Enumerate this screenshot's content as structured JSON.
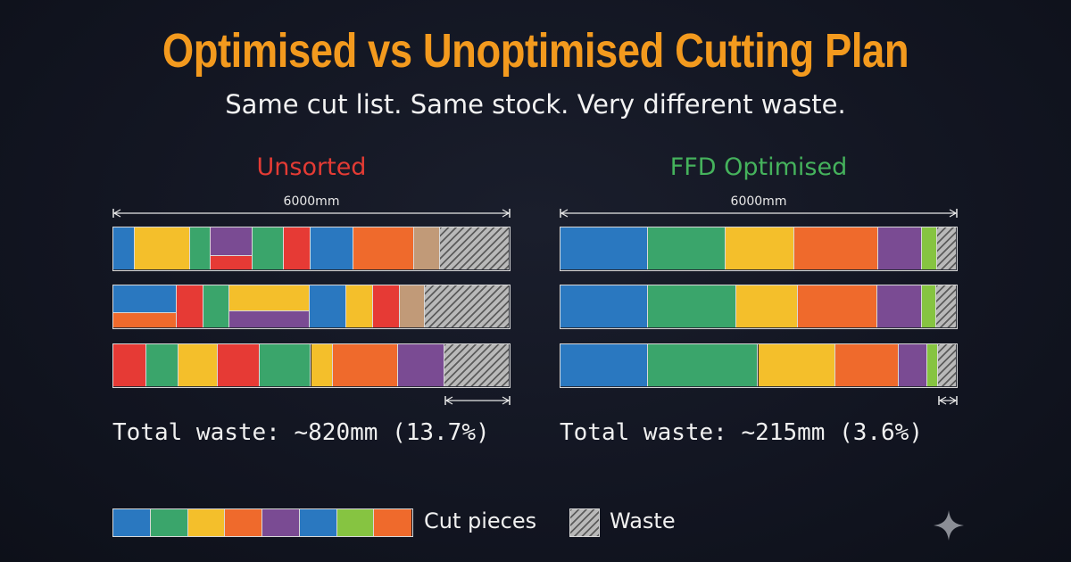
{
  "title": "Optimised vs Unoptimised Cutting Plan",
  "subtitle": "Same cut list. Same stock. Very different waste.",
  "stock_length_mm": 6000,
  "colors": {
    "blue": "#2a78c0",
    "green": "#3aa56b",
    "yellow": "#f4bf2b",
    "orange": "#ef6a2c",
    "purple": "#7a4b93",
    "red": "#e63a35",
    "tan": "#c19a78",
    "lime": "#86c441"
  },
  "panels": [
    {
      "id": "unsorted",
      "title": "Unsorted",
      "dimension_label": "6000mm",
      "total_waste_text": "Total waste: ~820mm (13.7%)",
      "total_waste_mm": 820,
      "total_waste_pct": 13.7,
      "bars": [
        {
          "pieces": [
            {
              "color": "blue",
              "length": 0.054
            },
            {
              "color": "yellow",
              "length": 0.14
            },
            {
              "color": "green",
              "length": 0.051
            },
            {
              "stack": [
                {
                  "color": "purple",
                  "frac": 0.68
                },
                {
                  "color": "red",
                  "frac": 0.32
                }
              ],
              "length": 0.107
            },
            {
              "color": "green",
              "length": 0.08
            },
            {
              "color": "red",
              "length": 0.066
            },
            {
              "color": "blue",
              "length": 0.11
            },
            {
              "color": "orange",
              "length": 0.152
            },
            {
              "color": "tan",
              "length": 0.066
            },
            {
              "waste": true,
              "length": 0.174
            }
          ]
        },
        {
          "pieces": [
            {
              "stack": [
                {
                  "color": "blue",
                  "frac": 0.65
                },
                {
                  "color": "orange",
                  "frac": 0.35
                }
              ],
              "length": 0.16
            },
            {
              "color": "red",
              "length": 0.068
            },
            {
              "color": "green",
              "length": 0.066
            },
            {
              "stack": [
                {
                  "color": "yellow",
                  "frac": 0.62
                },
                {
                  "color": "purple",
                  "frac": 0.38
                }
              ],
              "length": 0.203
            },
            {
              "color": "blue",
              "length": 0.093
            },
            {
              "color": "yellow",
              "length": 0.068
            },
            {
              "color": "red",
              "length": 0.066
            },
            {
              "color": "tan",
              "length": 0.064
            },
            {
              "waste": true,
              "length": 0.212
            }
          ]
        },
        {
          "pieces": [
            {
              "color": "red",
              "length": 0.083
            },
            {
              "color": "green",
              "length": 0.081
            },
            {
              "color": "yellow",
              "length": 0.1
            },
            {
              "color": "red",
              "length": 0.106
            },
            {
              "color": "green",
              "length": 0.13
            },
            {
              "color": "yellow",
              "length": 0.056
            },
            {
              "color": "orange",
              "length": 0.165
            },
            {
              "color": "purple",
              "length": 0.117
            },
            {
              "waste": true,
              "length": 0.162
            }
          ]
        }
      ]
    },
    {
      "id": "ffd",
      "title": "FFD Optimised",
      "dimension_label": "6000mm",
      "total_waste_text": "Total waste: ~215mm (3.6%)",
      "total_waste_mm": 215,
      "total_waste_pct": 3.6,
      "bars": [
        {
          "pieces": [
            {
              "color": "blue",
              "length": 0.222
            },
            {
              "color": "green",
              "length": 0.195
            },
            {
              "color": "yellow",
              "length": 0.175
            },
            {
              "color": "orange",
              "length": 0.211
            },
            {
              "color": "purple",
              "length": 0.112
            },
            {
              "color": "lime",
              "length": 0.037
            },
            {
              "waste": true,
              "length": 0.048
            }
          ]
        },
        {
          "pieces": [
            {
              "color": "blue",
              "length": 0.222
            },
            {
              "color": "green",
              "length": 0.222
            },
            {
              "color": "yellow",
              "length": 0.156
            },
            {
              "color": "orange",
              "length": 0.202
            },
            {
              "color": "purple",
              "length": 0.112
            },
            {
              "color": "lime",
              "length": 0.036
            },
            {
              "waste": true,
              "length": 0.05
            }
          ]
        },
        {
          "pieces": [
            {
              "color": "blue",
              "length": 0.222
            },
            {
              "color": "green",
              "length": 0.278
            },
            {
              "color": "yellow",
              "length": 0.195
            },
            {
              "color": "orange",
              "length": 0.161
            },
            {
              "color": "purple",
              "length": 0.072
            },
            {
              "color": "lime",
              "length": 0.027
            },
            {
              "waste": true,
              "length": 0.045
            }
          ]
        }
      ]
    }
  ],
  "legend": {
    "cut_pieces_label": "Cut pieces",
    "waste_label": "Waste",
    "swatches": [
      "blue",
      "green",
      "yellow",
      "orange",
      "purple",
      "blue",
      "lime",
      "orange"
    ]
  },
  "sparkle_icon": "sparkle-icon"
}
